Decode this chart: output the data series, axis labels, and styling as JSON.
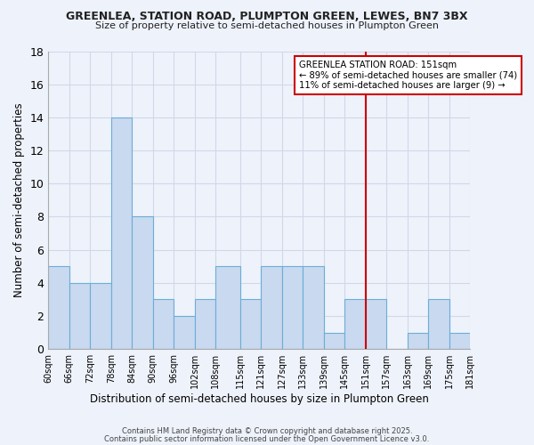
{
  "title1": "GREENLEA, STATION ROAD, PLUMPTON GREEN, LEWES, BN7 3BX",
  "title2": "Size of property relative to semi-detached houses in Plumpton Green",
  "xlabel": "Distribution of semi-detached houses by size in Plumpton Green",
  "ylabel": "Number of semi-detached properties",
  "bins": [
    60,
    66,
    72,
    78,
    84,
    90,
    96,
    102,
    108,
    115,
    121,
    127,
    133,
    139,
    145,
    151,
    157,
    163,
    169,
    175,
    181
  ],
  "counts": [
    5,
    4,
    4,
    14,
    8,
    3,
    2,
    3,
    5,
    3,
    5,
    5,
    5,
    1,
    3,
    3,
    0,
    1,
    3,
    1
  ],
  "bar_color": "#c9d9f0",
  "bar_edge_color": "#6baed6",
  "vline_x": 151,
  "vline_color": "#cc0000",
  "annotation_title": "GREENLEA STATION ROAD: 151sqm",
  "annotation_line1": "← 89% of semi-detached houses are smaller (74)",
  "annotation_line2": "11% of semi-detached houses are larger (9) →",
  "annotation_box_edge": "#cc0000",
  "ylim": [
    0,
    18
  ],
  "yticks": [
    0,
    2,
    4,
    6,
    8,
    10,
    12,
    14,
    16,
    18
  ],
  "tick_labels": [
    "60sqm",
    "66sqm",
    "72sqm",
    "78sqm",
    "84sqm",
    "90sqm",
    "96sqm",
    "102sqm",
    "108sqm",
    "115sqm",
    "121sqm",
    "127sqm",
    "133sqm",
    "139sqm",
    "145sqm",
    "151sqm",
    "157sqm",
    "163sqm",
    "169sqm",
    "175sqm",
    "181sqm"
  ],
  "footnote1": "Contains HM Land Registry data © Crown copyright and database right 2025.",
  "footnote2": "Contains public sector information licensed under the Open Government Licence v3.0.",
  "bg_color": "#eef2fb",
  "grid_color": "#d0d8e8",
  "plot_bg_color": "#eef2fb"
}
